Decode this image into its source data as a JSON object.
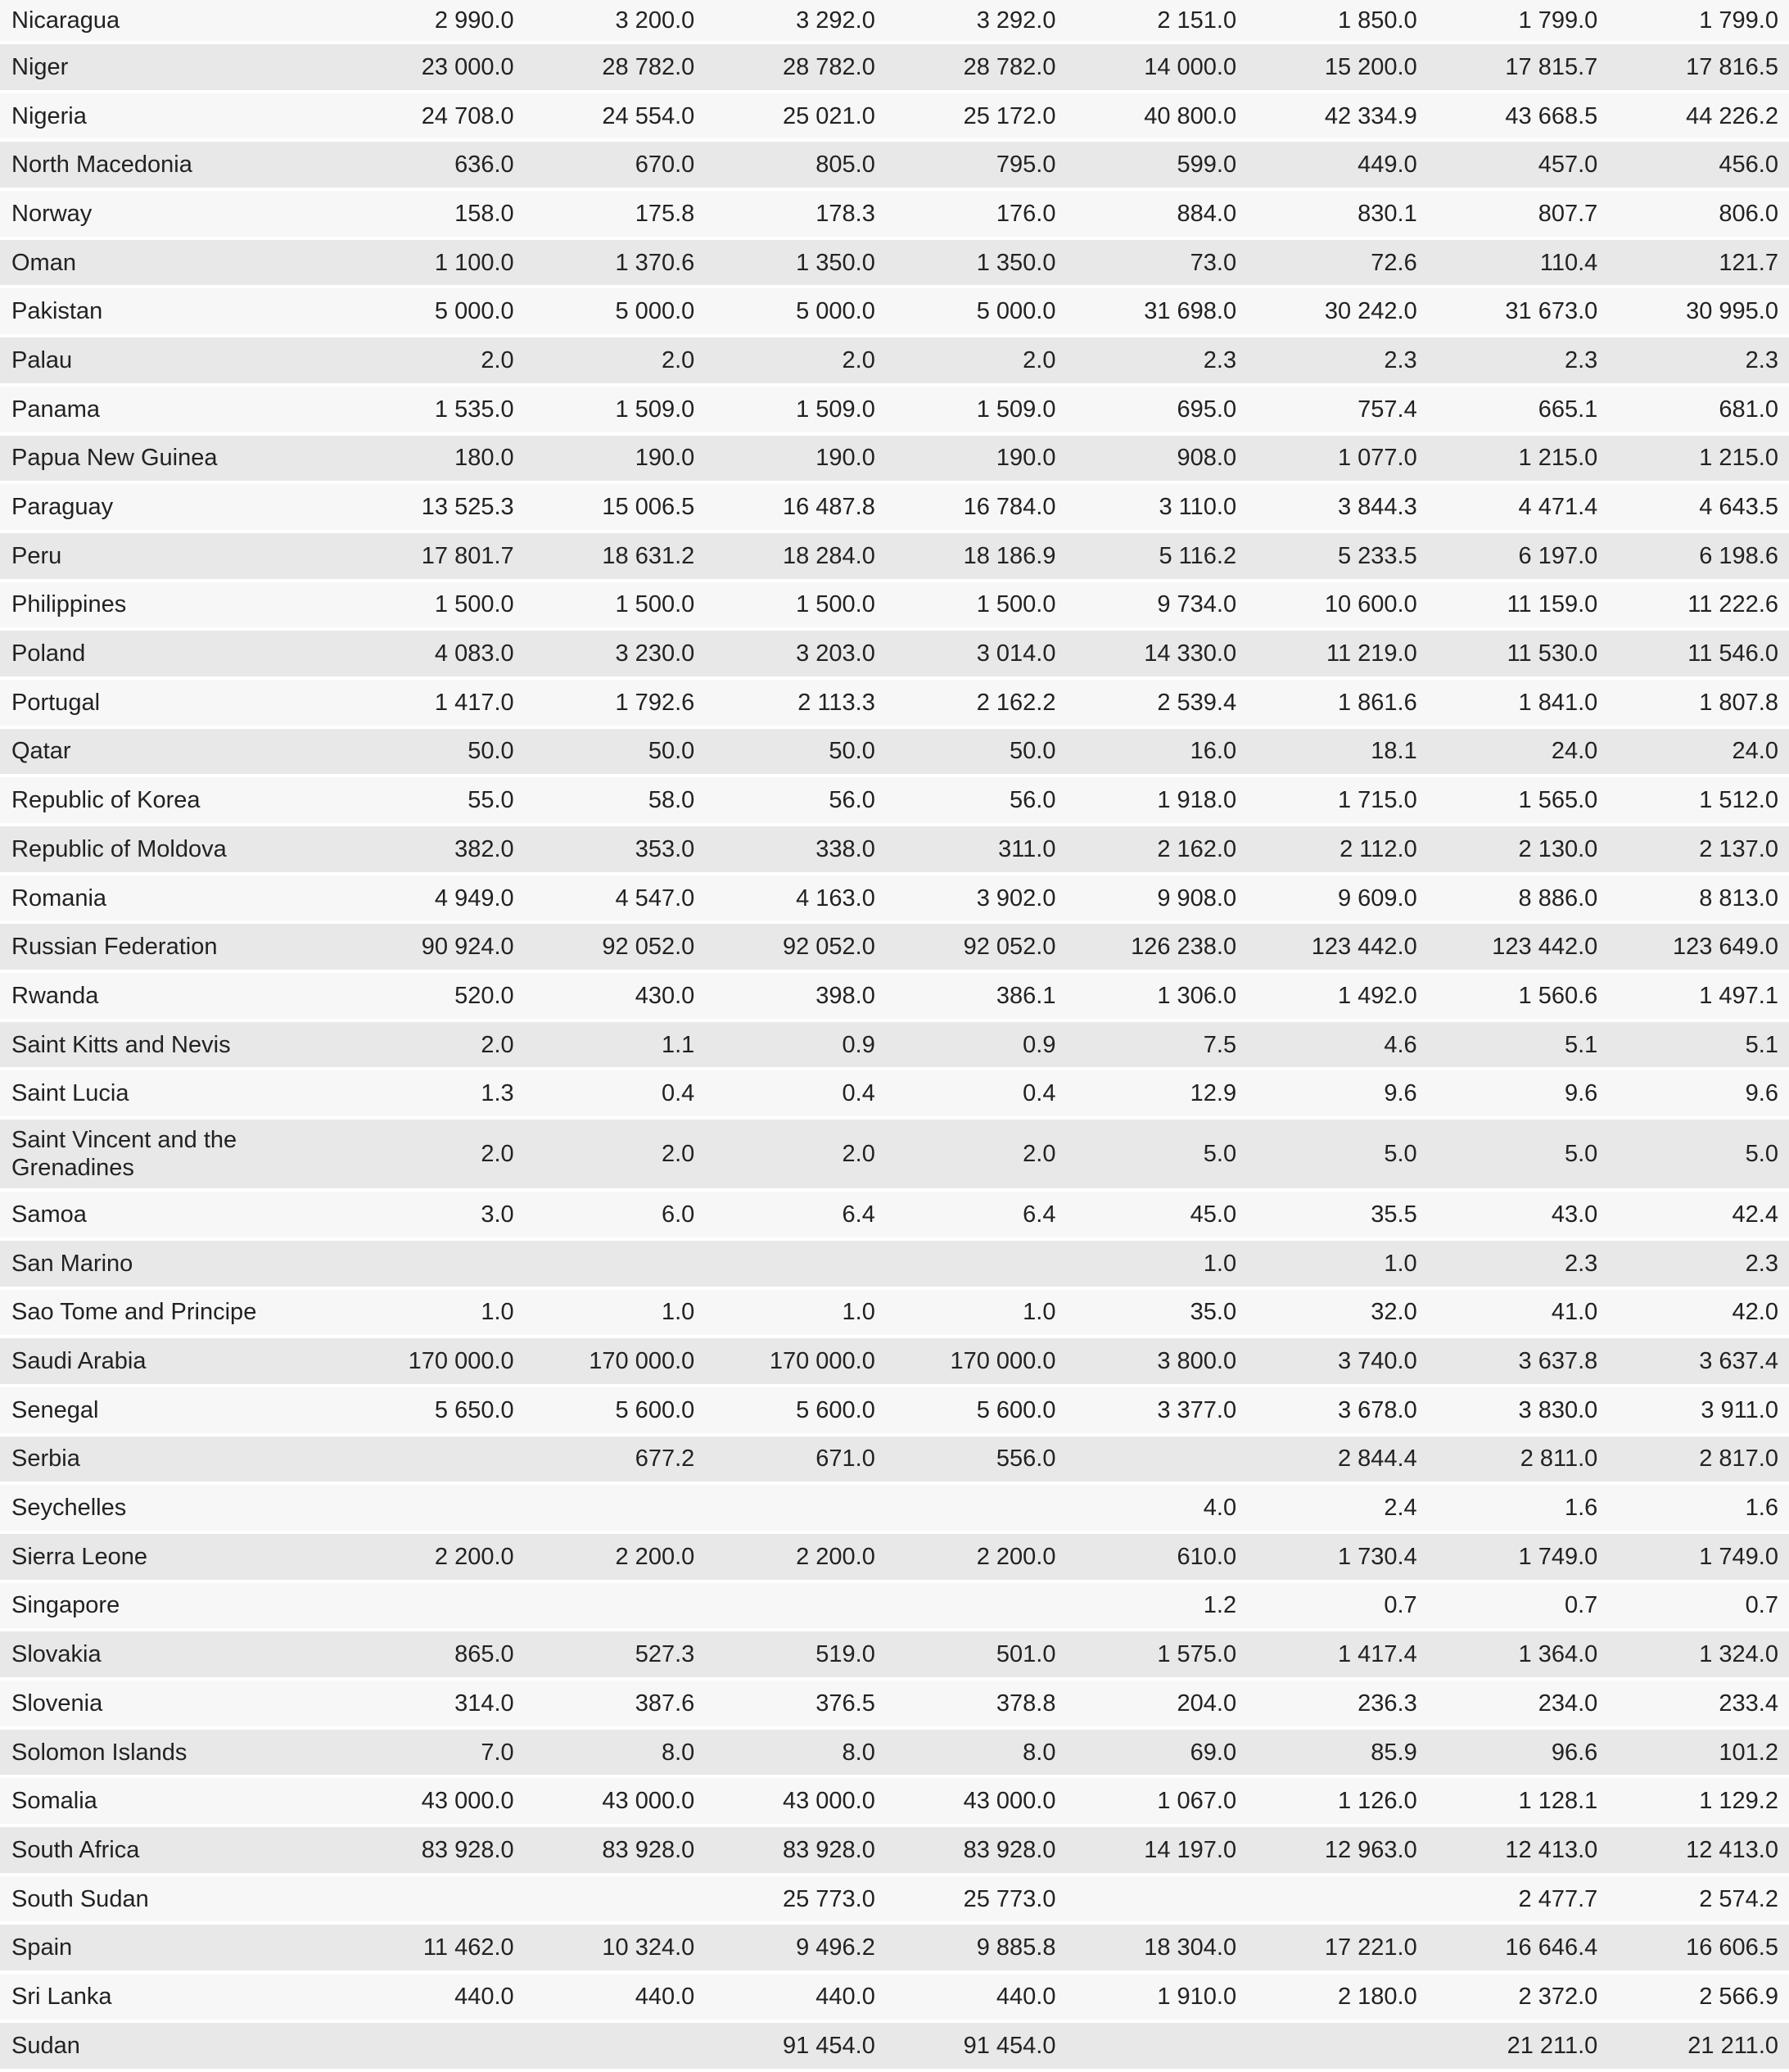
{
  "styles": {
    "row_light_bg": "#f7f7f7",
    "row_dark_bg": "#e8e8e8",
    "text_color": "#222222",
    "separator_color": "#ffffff"
  },
  "chart_data": {
    "type": "table",
    "rows": [
      {
        "country": "Nicaragua",
        "values": [
          "2 990.0",
          "3 200.0",
          "3 292.0",
          "3 292.0",
          "2 151.0",
          "1 850.0",
          "1 799.0",
          "1 799.0"
        ]
      },
      {
        "country": "Niger",
        "values": [
          "23 000.0",
          "28 782.0",
          "28 782.0",
          "28 782.0",
          "14 000.0",
          "15 200.0",
          "17 815.7",
          "17 816.5"
        ]
      },
      {
        "country": "Nigeria",
        "values": [
          "24 708.0",
          "24 554.0",
          "25 021.0",
          "25 172.0",
          "40 800.0",
          "42 334.9",
          "43 668.5",
          "44 226.2"
        ]
      },
      {
        "country": "North Macedonia",
        "values": [
          "636.0",
          "670.0",
          "805.0",
          "795.0",
          "599.0",
          "449.0",
          "457.0",
          "456.0"
        ]
      },
      {
        "country": "Norway",
        "values": [
          "158.0",
          "175.8",
          "178.3",
          "176.0",
          "884.0",
          "830.1",
          "807.7",
          "806.0"
        ]
      },
      {
        "country": "Oman",
        "values": [
          "1 100.0",
          "1 370.6",
          "1 350.0",
          "1 350.0",
          "73.0",
          "72.6",
          "110.4",
          "121.7"
        ]
      },
      {
        "country": "Pakistan",
        "values": [
          "5 000.0",
          "5 000.0",
          "5 000.0",
          "5 000.0",
          "31 698.0",
          "30 242.0",
          "31 673.0",
          "30 995.0"
        ]
      },
      {
        "country": "Palau",
        "values": [
          "2.0",
          "2.0",
          "2.0",
          "2.0",
          "2.3",
          "2.3",
          "2.3",
          "2.3"
        ]
      },
      {
        "country": "Panama",
        "values": [
          "1 535.0",
          "1 509.0",
          "1 509.0",
          "1 509.0",
          "695.0",
          "757.4",
          "665.1",
          "681.0"
        ]
      },
      {
        "country": "Papua New Guinea",
        "values": [
          "180.0",
          "190.0",
          "190.0",
          "190.0",
          "908.0",
          "1 077.0",
          "1 215.0",
          "1 215.0"
        ]
      },
      {
        "country": "Paraguay",
        "values": [
          "13 525.3",
          "15 006.5",
          "16 487.8",
          "16 784.0",
          "3 110.0",
          "3 844.3",
          "4 471.4",
          "4 643.5"
        ]
      },
      {
        "country": "Peru",
        "values": [
          "17 801.7",
          "18 631.2",
          "18 284.0",
          "18 186.9",
          "5 116.2",
          "5 233.5",
          "6 197.0",
          "6 198.6"
        ]
      },
      {
        "country": "Philippines",
        "values": [
          "1 500.0",
          "1 500.0",
          "1 500.0",
          "1 500.0",
          "9 734.0",
          "10 600.0",
          "11 159.0",
          "11 222.6"
        ]
      },
      {
        "country": "Poland",
        "values": [
          "4 083.0",
          "3 230.0",
          "3 203.0",
          "3 014.0",
          "14 330.0",
          "11 219.0",
          "11 530.0",
          "11 546.0"
        ]
      },
      {
        "country": "Portugal",
        "values": [
          "1 417.0",
          "1 792.6",
          "2 113.3",
          "2 162.2",
          "2 539.4",
          "1 861.6",
          "1 841.0",
          "1 807.8"
        ]
      },
      {
        "country": "Qatar",
        "values": [
          "50.0",
          "50.0",
          "50.0",
          "50.0",
          "16.0",
          "18.1",
          "24.0",
          "24.0"
        ]
      },
      {
        "country": "Republic of Korea",
        "values": [
          "55.0",
          "58.0",
          "56.0",
          "56.0",
          "1 918.0",
          "1 715.0",
          "1 565.0",
          "1 512.0"
        ]
      },
      {
        "country": "Republic of Moldova",
        "values": [
          "382.0",
          "353.0",
          "338.0",
          "311.0",
          "2 162.0",
          "2 112.0",
          "2 130.0",
          "2 137.0"
        ]
      },
      {
        "country": "Romania",
        "values": [
          "4 949.0",
          "4 547.0",
          "4 163.0",
          "3 902.0",
          "9 908.0",
          "9 609.0",
          "8 886.0",
          "8 813.0"
        ]
      },
      {
        "country": "Russian Federation",
        "values": [
          "90 924.0",
          "92 052.0",
          "92 052.0",
          "92 052.0",
          "126 238.0",
          "123 442.0",
          "123 442.0",
          "123 649.0"
        ]
      },
      {
        "country": "Rwanda",
        "values": [
          "520.0",
          "430.0",
          "398.0",
          "386.1",
          "1 306.0",
          "1 492.0",
          "1 560.6",
          "1 497.1"
        ]
      },
      {
        "country": "Saint Kitts and Nevis",
        "values": [
          "2.0",
          "1.1",
          "0.9",
          "0.9",
          "7.5",
          "4.6",
          "5.1",
          "5.1"
        ]
      },
      {
        "country": "Saint Lucia",
        "values": [
          "1.3",
          "0.4",
          "0.4",
          "0.4",
          "12.9",
          "9.6",
          "9.6",
          "9.6"
        ]
      },
      {
        "country": "Saint Vincent and the Grenadines",
        "values": [
          "2.0",
          "2.0",
          "2.0",
          "2.0",
          "5.0",
          "5.0",
          "5.0",
          "5.0"
        ]
      },
      {
        "country": "Samoa",
        "values": [
          "3.0",
          "6.0",
          "6.4",
          "6.4",
          "45.0",
          "35.5",
          "43.0",
          "42.4"
        ]
      },
      {
        "country": "San Marino",
        "values": [
          "",
          "",
          "",
          "",
          "1.0",
          "1.0",
          "2.3",
          "2.3"
        ]
      },
      {
        "country": "Sao Tome and Principe",
        "values": [
          "1.0",
          "1.0",
          "1.0",
          "1.0",
          "35.0",
          "32.0",
          "41.0",
          "42.0"
        ]
      },
      {
        "country": "Saudi Arabia",
        "values": [
          "170 000.0",
          "170 000.0",
          "170 000.0",
          "170 000.0",
          "3 800.0",
          "3 740.0",
          "3 637.8",
          "3 637.4"
        ]
      },
      {
        "country": "Senegal",
        "values": [
          "5 650.0",
          "5 600.0",
          "5 600.0",
          "5 600.0",
          "3 377.0",
          "3 678.0",
          "3 830.0",
          "3 911.0"
        ]
      },
      {
        "country": "Serbia",
        "values": [
          "",
          "677.2",
          "671.0",
          "556.0",
          "",
          "2 844.4",
          "2 811.0",
          "2 817.0"
        ]
      },
      {
        "country": "Seychelles",
        "values": [
          "",
          "",
          "",
          "",
          "4.0",
          "2.4",
          "1.6",
          "1.6"
        ]
      },
      {
        "country": "Sierra Leone",
        "values": [
          "2 200.0",
          "2 200.0",
          "2 200.0",
          "2 200.0",
          "610.0",
          "1 730.4",
          "1 749.0",
          "1 749.0"
        ]
      },
      {
        "country": "Singapore",
        "values": [
          "",
          "",
          "",
          "",
          "1.2",
          "0.7",
          "0.7",
          "0.7"
        ]
      },
      {
        "country": "Slovakia",
        "values": [
          "865.0",
          "527.3",
          "519.0",
          "501.0",
          "1 575.0",
          "1 417.4",
          "1 364.0",
          "1 324.0"
        ]
      },
      {
        "country": "Slovenia",
        "values": [
          "314.0",
          "387.6",
          "376.5",
          "378.8",
          "204.0",
          "236.3",
          "234.0",
          "233.4"
        ]
      },
      {
        "country": "Solomon Islands",
        "values": [
          "7.0",
          "8.0",
          "8.0",
          "8.0",
          "69.0",
          "85.9",
          "96.6",
          "101.2"
        ]
      },
      {
        "country": "Somalia",
        "values": [
          "43 000.0",
          "43 000.0",
          "43 000.0",
          "43 000.0",
          "1 067.0",
          "1 126.0",
          "1 128.1",
          "1 129.2"
        ]
      },
      {
        "country": "South Africa",
        "values": [
          "83 928.0",
          "83 928.0",
          "83 928.0",
          "83 928.0",
          "14 197.0",
          "12 963.0",
          "12 413.0",
          "12 413.0"
        ]
      },
      {
        "country": "South Sudan",
        "values": [
          "",
          "",
          "25 773.0",
          "25 773.0",
          "",
          "",
          "2 477.7",
          "2 574.2"
        ]
      },
      {
        "country": "Spain",
        "values": [
          "11 462.0",
          "10 324.0",
          "9 496.2",
          "9 885.8",
          "18 304.0",
          "17 221.0",
          "16 646.4",
          "16 606.5"
        ]
      },
      {
        "country": "Sri Lanka",
        "values": [
          "440.0",
          "440.0",
          "440.0",
          "440.0",
          "1 910.0",
          "2 180.0",
          "2 372.0",
          "2 566.9"
        ]
      },
      {
        "country": "Sudan",
        "values": [
          "",
          "",
          "91 454.0",
          "91 454.0",
          "",
          "",
          "21 211.0",
          "21 211.0"
        ]
      }
    ]
  }
}
